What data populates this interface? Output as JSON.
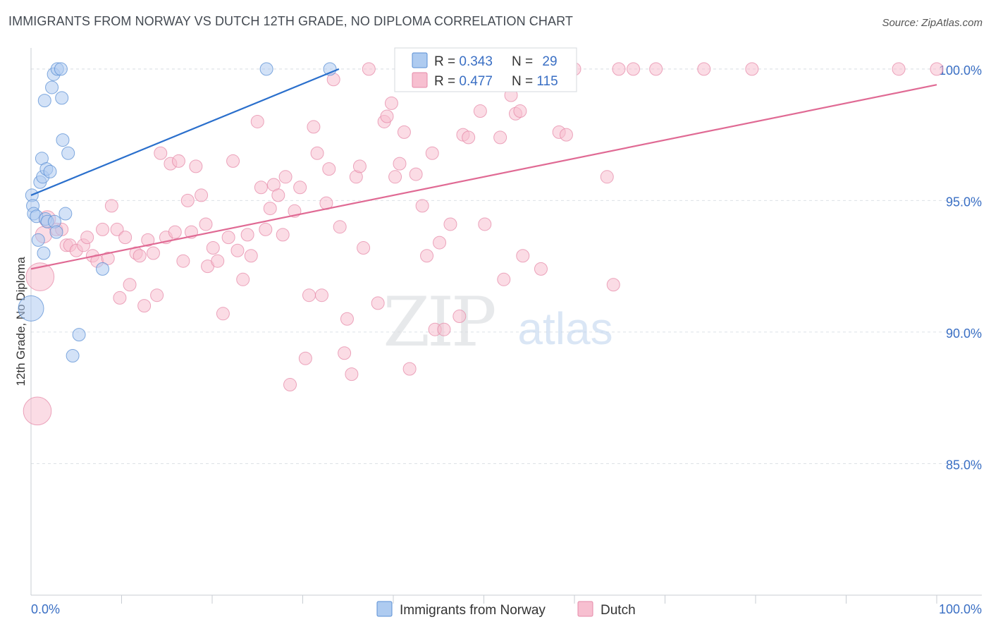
{
  "header": {
    "title": "IMMIGRANTS FROM NORWAY VS DUTCH 12TH GRADE, NO DIPLOMA CORRELATION CHART",
    "source": "Source: ZipAtlas.com"
  },
  "watermark": {
    "zip": "ZIP",
    "atlas": "atlas"
  },
  "legend_stats": [
    {
      "r_label": "R = ",
      "r_value": "0.343",
      "n_label": "N = ",
      "n_value": "29"
    },
    {
      "r_label": "R = ",
      "r_value": "0.477",
      "n_label": "N = ",
      "n_value": "115"
    }
  ],
  "bottom_legend": [
    {
      "label": "Immigrants from Norway"
    },
    {
      "label": "Dutch"
    }
  ],
  "colors": {
    "norway_fill": "#aecbf0",
    "norway_stroke": "#5a8fd4",
    "norway_line": "#2a6fcc",
    "dutch_fill": "#f7bfd0",
    "dutch_stroke": "#e58aa8",
    "dutch_line": "#e06a94",
    "value_text": "#3a6fc4",
    "grid": "#dde1e6"
  },
  "chart_data": {
    "type": "scatter",
    "title": "IMMIGRANTS FROM NORWAY VS DUTCH 12TH GRADE, NO DIPLOMA CORRELATION CHART",
    "xlabel": "",
    "ylabel": "12th Grade, No Diploma",
    "xlim": [
      0,
      100
    ],
    "ylim": [
      80.0,
      100.8
    ],
    "x_tick_labels": [
      "0.0%",
      "100.0%"
    ],
    "y_ticks": [
      85,
      90,
      95,
      100
    ],
    "y_tick_labels": [
      "85.0%",
      "90.0%",
      "95.0%",
      "100.0%"
    ],
    "grid": true,
    "legend_position": "top-center",
    "series": [
      {
        "name": "Immigrants from Norway",
        "r": 0.343,
        "n": 29,
        "trend": {
          "x": [
            0,
            34
          ],
          "y": [
            95.2,
            100.0
          ]
        },
        "points": [
          {
            "x": 0.0,
            "y": 90.9,
            "s": 2
          },
          {
            "x": 0.1,
            "y": 95.2,
            "s": 1
          },
          {
            "x": 0.2,
            "y": 94.8,
            "s": 1
          },
          {
            "x": 0.3,
            "y": 94.5,
            "s": 1
          },
          {
            "x": 0.6,
            "y": 94.4,
            "s": 1
          },
          {
            "x": 0.8,
            "y": 93.5,
            "s": 1
          },
          {
            "x": 1.0,
            "y": 95.7,
            "s": 1
          },
          {
            "x": 1.2,
            "y": 96.6,
            "s": 1
          },
          {
            "x": 1.3,
            "y": 95.9,
            "s": 1
          },
          {
            "x": 1.4,
            "y": 93.0,
            "s": 1
          },
          {
            "x": 1.5,
            "y": 98.8,
            "s": 1
          },
          {
            "x": 1.6,
            "y": 94.3,
            "s": 1
          },
          {
            "x": 1.7,
            "y": 96.2,
            "s": 1
          },
          {
            "x": 1.8,
            "y": 94.2,
            "s": 1
          },
          {
            "x": 2.1,
            "y": 96.1,
            "s": 1
          },
          {
            "x": 2.3,
            "y": 99.3,
            "s": 1
          },
          {
            "x": 2.5,
            "y": 99.8,
            "s": 1
          },
          {
            "x": 2.6,
            "y": 94.2,
            "s": 1
          },
          {
            "x": 2.8,
            "y": 93.8,
            "s": 1
          },
          {
            "x": 2.9,
            "y": 100.0,
            "s": 1
          },
          {
            "x": 3.3,
            "y": 100.0,
            "s": 1
          },
          {
            "x": 3.4,
            "y": 98.9,
            "s": 1
          },
          {
            "x": 3.5,
            "y": 97.3,
            "s": 1
          },
          {
            "x": 3.8,
            "y": 94.5,
            "s": 1
          },
          {
            "x": 4.1,
            "y": 96.8,
            "s": 1
          },
          {
            "x": 4.6,
            "y": 89.1,
            "s": 1
          },
          {
            "x": 5.3,
            "y": 89.9,
            "s": 1
          },
          {
            "x": 7.9,
            "y": 92.4,
            "s": 1
          },
          {
            "x": 26.0,
            "y": 100.0,
            "s": 1
          },
          {
            "x": 33.0,
            "y": 100.0,
            "s": 1
          }
        ]
      },
      {
        "name": "Dutch",
        "r": 0.477,
        "n": 115,
        "trend": {
          "x": [
            0,
            100
          ],
          "y": [
            92.4,
            99.4
          ]
        },
        "points": [
          {
            "x": 0.7,
            "y": 87.0,
            "s": 2.2
          },
          {
            "x": 1.0,
            "y": 92.1,
            "s": 2.2
          },
          {
            "x": 1.4,
            "y": 93.7,
            "s": 1.3
          },
          {
            "x": 1.8,
            "y": 94.3,
            "s": 1.3
          },
          {
            "x": 2.8,
            "y": 93.9,
            "s": 1
          },
          {
            "x": 3.4,
            "y": 93.9,
            "s": 1
          },
          {
            "x": 3.9,
            "y": 93.3,
            "s": 1
          },
          {
            "x": 4.3,
            "y": 93.3,
            "s": 1
          },
          {
            "x": 5.0,
            "y": 93.1,
            "s": 1
          },
          {
            "x": 5.8,
            "y": 93.3,
            "s": 1
          },
          {
            "x": 6.2,
            "y": 93.6,
            "s": 1
          },
          {
            "x": 6.8,
            "y": 92.9,
            "s": 1
          },
          {
            "x": 7.3,
            "y": 92.7,
            "s": 1
          },
          {
            "x": 7.9,
            "y": 93.9,
            "s": 1
          },
          {
            "x": 8.5,
            "y": 92.8,
            "s": 1
          },
          {
            "x": 8.9,
            "y": 94.8,
            "s": 1
          },
          {
            "x": 9.5,
            "y": 93.9,
            "s": 1
          },
          {
            "x": 9.8,
            "y": 91.3,
            "s": 1
          },
          {
            "x": 10.4,
            "y": 93.6,
            "s": 1
          },
          {
            "x": 10.9,
            "y": 91.8,
            "s": 1
          },
          {
            "x": 11.6,
            "y": 93.0,
            "s": 1
          },
          {
            "x": 12.0,
            "y": 92.9,
            "s": 1
          },
          {
            "x": 12.5,
            "y": 91.0,
            "s": 1
          },
          {
            "x": 12.9,
            "y": 93.5,
            "s": 1
          },
          {
            "x": 13.5,
            "y": 93.0,
            "s": 1
          },
          {
            "x": 13.9,
            "y": 91.4,
            "s": 1
          },
          {
            "x": 14.3,
            "y": 96.8,
            "s": 1
          },
          {
            "x": 14.9,
            "y": 93.6,
            "s": 1
          },
          {
            "x": 15.4,
            "y": 96.4,
            "s": 1
          },
          {
            "x": 15.9,
            "y": 93.8,
            "s": 1
          },
          {
            "x": 16.3,
            "y": 96.5,
            "s": 1
          },
          {
            "x": 16.8,
            "y": 92.7,
            "s": 1
          },
          {
            "x": 17.3,
            "y": 95.0,
            "s": 1
          },
          {
            "x": 17.7,
            "y": 93.8,
            "s": 1
          },
          {
            "x": 18.2,
            "y": 96.3,
            "s": 1
          },
          {
            "x": 18.8,
            "y": 95.2,
            "s": 1
          },
          {
            "x": 19.3,
            "y": 94.1,
            "s": 1
          },
          {
            "x": 19.5,
            "y": 92.5,
            "s": 1
          },
          {
            "x": 20.1,
            "y": 93.2,
            "s": 1
          },
          {
            "x": 20.6,
            "y": 92.7,
            "s": 1
          },
          {
            "x": 21.2,
            "y": 90.7,
            "s": 1
          },
          {
            "x": 21.8,
            "y": 93.6,
            "s": 1
          },
          {
            "x": 22.3,
            "y": 96.5,
            "s": 1
          },
          {
            "x": 22.8,
            "y": 93.1,
            "s": 1
          },
          {
            "x": 23.4,
            "y": 92.0,
            "s": 1
          },
          {
            "x": 23.9,
            "y": 93.7,
            "s": 1
          },
          {
            "x": 24.3,
            "y": 92.9,
            "s": 1
          },
          {
            "x": 25.0,
            "y": 98.0,
            "s": 1
          },
          {
            "x": 25.4,
            "y": 95.5,
            "s": 1
          },
          {
            "x": 25.9,
            "y": 93.9,
            "s": 1
          },
          {
            "x": 26.4,
            "y": 94.7,
            "s": 1
          },
          {
            "x": 26.8,
            "y": 95.6,
            "s": 1
          },
          {
            "x": 27.3,
            "y": 95.2,
            "s": 1
          },
          {
            "x": 27.8,
            "y": 93.7,
            "s": 1
          },
          {
            "x": 28.1,
            "y": 95.9,
            "s": 1
          },
          {
            "x": 28.6,
            "y": 88.0,
            "s": 1
          },
          {
            "x": 29.1,
            "y": 94.6,
            "s": 1
          },
          {
            "x": 29.7,
            "y": 95.5,
            "s": 1
          },
          {
            "x": 30.3,
            "y": 89.0,
            "s": 1
          },
          {
            "x": 30.7,
            "y": 91.4,
            "s": 1
          },
          {
            "x": 31.2,
            "y": 97.8,
            "s": 1
          },
          {
            "x": 31.6,
            "y": 96.8,
            "s": 1
          },
          {
            "x": 32.1,
            "y": 91.4,
            "s": 1
          },
          {
            "x": 32.6,
            "y": 94.9,
            "s": 1
          },
          {
            "x": 32.9,
            "y": 96.2,
            "s": 1
          },
          {
            "x": 33.4,
            "y": 99.6,
            "s": 1
          },
          {
            "x": 34.1,
            "y": 94.0,
            "s": 1
          },
          {
            "x": 34.6,
            "y": 89.2,
            "s": 1
          },
          {
            "x": 34.9,
            "y": 90.5,
            "s": 1
          },
          {
            "x": 35.4,
            "y": 88.4,
            "s": 1
          },
          {
            "x": 35.9,
            "y": 95.9,
            "s": 1
          },
          {
            "x": 36.3,
            "y": 96.3,
            "s": 1
          },
          {
            "x": 36.7,
            "y": 93.2,
            "s": 1
          },
          {
            "x": 37.3,
            "y": 100.0,
            "s": 1
          },
          {
            "x": 38.3,
            "y": 91.1,
            "s": 1
          },
          {
            "x": 39.0,
            "y": 98.0,
            "s": 1
          },
          {
            "x": 39.3,
            "y": 98.2,
            "s": 1
          },
          {
            "x": 39.8,
            "y": 98.7,
            "s": 1
          },
          {
            "x": 40.2,
            "y": 95.9,
            "s": 1
          },
          {
            "x": 40.7,
            "y": 96.4,
            "s": 1
          },
          {
            "x": 41.2,
            "y": 97.6,
            "s": 1
          },
          {
            "x": 41.8,
            "y": 88.6,
            "s": 1
          },
          {
            "x": 42.5,
            "y": 96.0,
            "s": 1
          },
          {
            "x": 43.2,
            "y": 94.8,
            "s": 1
          },
          {
            "x": 43.7,
            "y": 92.9,
            "s": 1
          },
          {
            "x": 44.3,
            "y": 96.8,
            "s": 1
          },
          {
            "x": 44.6,
            "y": 90.1,
            "s": 1
          },
          {
            "x": 45.6,
            "y": 90.1,
            "s": 1
          },
          {
            "x": 45.1,
            "y": 93.4,
            "s": 1
          },
          {
            "x": 46.3,
            "y": 94.1,
            "s": 1
          },
          {
            "x": 47.0,
            "y": 100.0,
            "s": 1
          },
          {
            "x": 47.3,
            "y": 90.6,
            "s": 1
          },
          {
            "x": 47.7,
            "y": 97.5,
            "s": 1
          },
          {
            "x": 48.3,
            "y": 97.4,
            "s": 1
          },
          {
            "x": 49.6,
            "y": 98.4,
            "s": 1
          },
          {
            "x": 50.1,
            "y": 94.1,
            "s": 1
          },
          {
            "x": 51.8,
            "y": 97.4,
            "s": 1
          },
          {
            "x": 52.2,
            "y": 92.0,
            "s": 1
          },
          {
            "x": 53.0,
            "y": 99.0,
            "s": 1
          },
          {
            "x": 53.5,
            "y": 98.3,
            "s": 1
          },
          {
            "x": 54.0,
            "y": 98.4,
            "s": 1
          },
          {
            "x": 54.3,
            "y": 92.9,
            "s": 1
          },
          {
            "x": 56.3,
            "y": 92.4,
            "s": 1
          },
          {
            "x": 58.3,
            "y": 97.6,
            "s": 1
          },
          {
            "x": 59.1,
            "y": 97.5,
            "s": 1
          },
          {
            "x": 60.0,
            "y": 100.0,
            "s": 1
          },
          {
            "x": 63.6,
            "y": 95.9,
            "s": 1
          },
          {
            "x": 64.3,
            "y": 91.8,
            "s": 1
          },
          {
            "x": 64.9,
            "y": 100.0,
            "s": 1
          },
          {
            "x": 66.5,
            "y": 100.0,
            "s": 1
          },
          {
            "x": 69.0,
            "y": 100.0,
            "s": 1
          },
          {
            "x": 74.3,
            "y": 100.0,
            "s": 1
          },
          {
            "x": 79.6,
            "y": 100.0,
            "s": 1
          },
          {
            "x": 95.8,
            "y": 100.0,
            "s": 1
          },
          {
            "x": 100.0,
            "y": 100.0,
            "s": 1
          }
        ]
      }
    ]
  }
}
